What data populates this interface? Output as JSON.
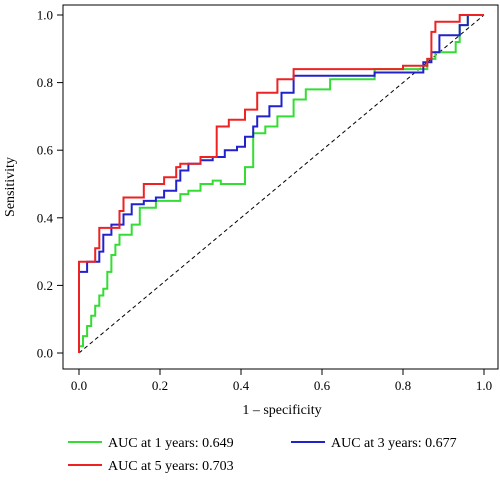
{
  "chart_data": {
    "type": "line",
    "title": "",
    "xlabel": "1 – specificity",
    "ylabel": "Sensitivity",
    "xlim": [
      0,
      1
    ],
    "ylim": [
      0,
      1
    ],
    "xticks": [
      "0.0",
      "0.2",
      "0.4",
      "0.6",
      "0.8",
      "1.0"
    ],
    "yticks": [
      "0.0",
      "0.2",
      "0.4",
      "0.6",
      "0.8",
      "1.0"
    ],
    "grid": false,
    "reference_line": "diagonal dashed",
    "legend_position": "bottom",
    "series": [
      {
        "name": "AUC at 1 years: 0.649",
        "color": "#33dd33",
        "points": [
          [
            0,
            0
          ],
          [
            0,
            0.02
          ],
          [
            0.01,
            0.02
          ],
          [
            0.01,
            0.05
          ],
          [
            0.02,
            0.05
          ],
          [
            0.02,
            0.08
          ],
          [
            0.03,
            0.08
          ],
          [
            0.03,
            0.11
          ],
          [
            0.04,
            0.11
          ],
          [
            0.04,
            0.14
          ],
          [
            0.05,
            0.14
          ],
          [
            0.05,
            0.17
          ],
          [
            0.06,
            0.17
          ],
          [
            0.06,
            0.19
          ],
          [
            0.07,
            0.19
          ],
          [
            0.07,
            0.24
          ],
          [
            0.08,
            0.24
          ],
          [
            0.08,
            0.29
          ],
          [
            0.09,
            0.29
          ],
          [
            0.09,
            0.32
          ],
          [
            0.1,
            0.32
          ],
          [
            0.1,
            0.35
          ],
          [
            0.13,
            0.35
          ],
          [
            0.13,
            0.38
          ],
          [
            0.15,
            0.38
          ],
          [
            0.15,
            0.43
          ],
          [
            0.19,
            0.43
          ],
          [
            0.19,
            0.45
          ],
          [
            0.25,
            0.45
          ],
          [
            0.25,
            0.47
          ],
          [
            0.27,
            0.47
          ],
          [
            0.27,
            0.48
          ],
          [
            0.3,
            0.48
          ],
          [
            0.3,
            0.5
          ],
          [
            0.33,
            0.5
          ],
          [
            0.33,
            0.51
          ],
          [
            0.35,
            0.51
          ],
          [
            0.35,
            0.5
          ],
          [
            0.41,
            0.5
          ],
          [
            0.41,
            0.55
          ],
          [
            0.43,
            0.55
          ],
          [
            0.43,
            0.65
          ],
          [
            0.46,
            0.65
          ],
          [
            0.46,
            0.67
          ],
          [
            0.49,
            0.67
          ],
          [
            0.49,
            0.7
          ],
          [
            0.53,
            0.7
          ],
          [
            0.53,
            0.75
          ],
          [
            0.56,
            0.75
          ],
          [
            0.56,
            0.78
          ],
          [
            0.62,
            0.78
          ],
          [
            0.62,
            0.81
          ],
          [
            0.73,
            0.81
          ],
          [
            0.73,
            0.84
          ],
          [
            0.86,
            0.84
          ],
          [
            0.86,
            0.87
          ],
          [
            0.88,
            0.87
          ],
          [
            0.88,
            0.89
          ],
          [
            0.93,
            0.89
          ],
          [
            0.93,
            0.92
          ],
          [
            0.94,
            0.92
          ],
          [
            0.94,
            0.97
          ],
          [
            0.96,
            0.97
          ],
          [
            0.96,
            1
          ],
          [
            1,
            1
          ]
        ]
      },
      {
        "name": "AUC at 3 years: 0.677",
        "color": "#2222cc",
        "points": [
          [
            0,
            0
          ],
          [
            0,
            0.24
          ],
          [
            0.02,
            0.24
          ],
          [
            0.02,
            0.27
          ],
          [
            0.05,
            0.27
          ],
          [
            0.05,
            0.3
          ],
          [
            0.06,
            0.3
          ],
          [
            0.06,
            0.35
          ],
          [
            0.08,
            0.35
          ],
          [
            0.08,
            0.38
          ],
          [
            0.11,
            0.38
          ],
          [
            0.11,
            0.41
          ],
          [
            0.13,
            0.41
          ],
          [
            0.13,
            0.44
          ],
          [
            0.16,
            0.44
          ],
          [
            0.16,
            0.45
          ],
          [
            0.19,
            0.45
          ],
          [
            0.19,
            0.46
          ],
          [
            0.21,
            0.46
          ],
          [
            0.21,
            0.48
          ],
          [
            0.24,
            0.48
          ],
          [
            0.24,
            0.51
          ],
          [
            0.25,
            0.51
          ],
          [
            0.25,
            0.54
          ],
          [
            0.27,
            0.54
          ],
          [
            0.27,
            0.56
          ],
          [
            0.3,
            0.56
          ],
          [
            0.3,
            0.57
          ],
          [
            0.33,
            0.57
          ],
          [
            0.33,
            0.58
          ],
          [
            0.36,
            0.58
          ],
          [
            0.36,
            0.6
          ],
          [
            0.39,
            0.6
          ],
          [
            0.39,
            0.61
          ],
          [
            0.41,
            0.61
          ],
          [
            0.41,
            0.64
          ],
          [
            0.43,
            0.64
          ],
          [
            0.43,
            0.67
          ],
          [
            0.44,
            0.67
          ],
          [
            0.44,
            0.7
          ],
          [
            0.47,
            0.7
          ],
          [
            0.47,
            0.73
          ],
          [
            0.5,
            0.73
          ],
          [
            0.5,
            0.77
          ],
          [
            0.53,
            0.77
          ],
          [
            0.53,
            0.82
          ],
          [
            0.73,
            0.82
          ],
          [
            0.73,
            0.83
          ],
          [
            0.85,
            0.83
          ],
          [
            0.85,
            0.86
          ],
          [
            0.87,
            0.86
          ],
          [
            0.87,
            0.89
          ],
          [
            0.89,
            0.89
          ],
          [
            0.89,
            0.94
          ],
          [
            0.94,
            0.94
          ],
          [
            0.94,
            0.97
          ],
          [
            0.96,
            0.97
          ],
          [
            0.96,
            1
          ],
          [
            1,
            1
          ]
        ]
      },
      {
        "name": "AUC at 5 years: 0.703",
        "color": "#ee2222",
        "points": [
          [
            0,
            0
          ],
          [
            0,
            0.27
          ],
          [
            0.04,
            0.27
          ],
          [
            0.04,
            0.31
          ],
          [
            0.05,
            0.31
          ],
          [
            0.05,
            0.37
          ],
          [
            0.1,
            0.37
          ],
          [
            0.1,
            0.42
          ],
          [
            0.11,
            0.42
          ],
          [
            0.11,
            0.46
          ],
          [
            0.16,
            0.46
          ],
          [
            0.16,
            0.5
          ],
          [
            0.21,
            0.5
          ],
          [
            0.21,
            0.52
          ],
          [
            0.24,
            0.52
          ],
          [
            0.24,
            0.55
          ],
          [
            0.25,
            0.55
          ],
          [
            0.25,
            0.56
          ],
          [
            0.3,
            0.56
          ],
          [
            0.3,
            0.58
          ],
          [
            0.34,
            0.58
          ],
          [
            0.34,
            0.67
          ],
          [
            0.37,
            0.67
          ],
          [
            0.37,
            0.69
          ],
          [
            0.41,
            0.69
          ],
          [
            0.41,
            0.72
          ],
          [
            0.44,
            0.72
          ],
          [
            0.44,
            0.77
          ],
          [
            0.49,
            0.77
          ],
          [
            0.49,
            0.81
          ],
          [
            0.53,
            0.81
          ],
          [
            0.53,
            0.84
          ],
          [
            0.8,
            0.84
          ],
          [
            0.8,
            0.85
          ],
          [
            0.86,
            0.85
          ],
          [
            0.86,
            0.87
          ],
          [
            0.87,
            0.87
          ],
          [
            0.87,
            0.95
          ],
          [
            0.88,
            0.95
          ],
          [
            0.88,
            0.98
          ],
          [
            0.94,
            0.98
          ],
          [
            0.94,
            1
          ],
          [
            1,
            1
          ]
        ]
      }
    ]
  }
}
